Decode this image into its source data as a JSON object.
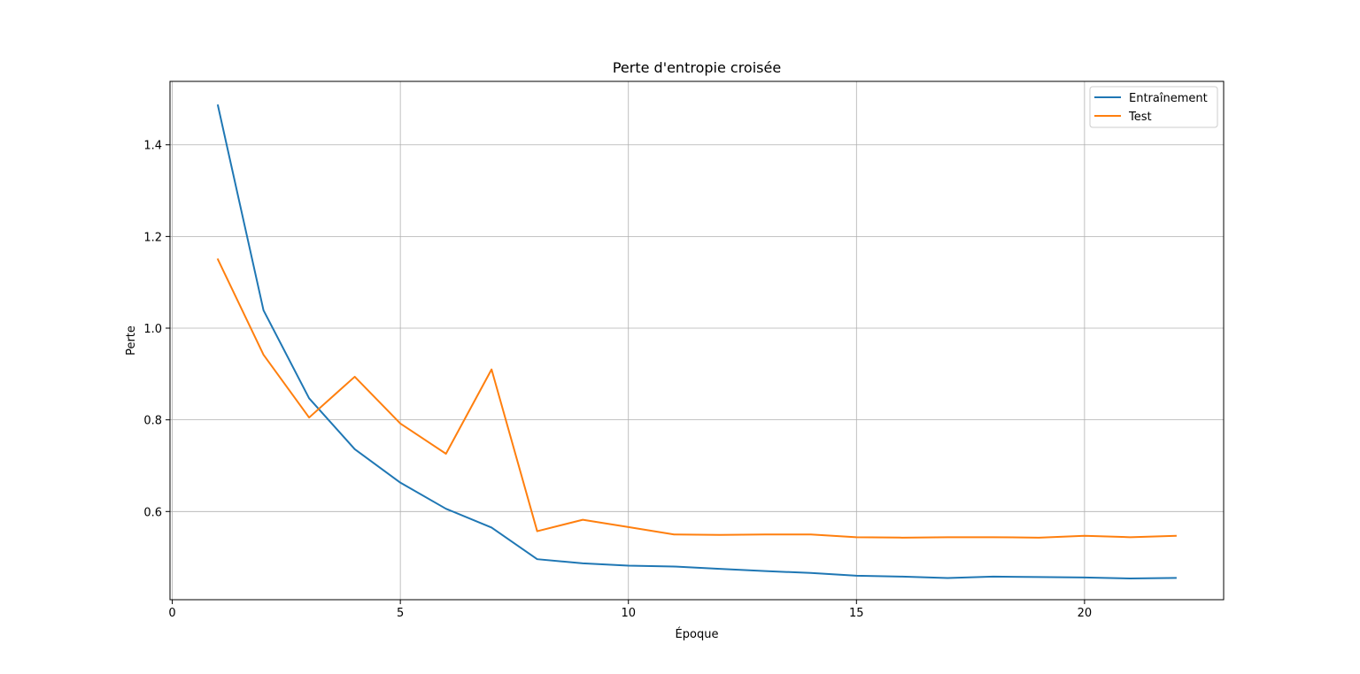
{
  "chart_data": {
    "type": "line",
    "title": "Perte d'entropie croisée",
    "xlabel": "Époque",
    "ylabel": "Perte",
    "xlim": [
      -0.05,
      23.05
    ],
    "ylim": [
      0.4076,
      1.5384
    ],
    "xticks": [
      0,
      5,
      10,
      15,
      20
    ],
    "yticks": [
      0.6,
      0.8,
      1.0,
      1.2,
      1.4
    ],
    "xtick_labels": [
      "0",
      "5",
      "10",
      "15",
      "20"
    ],
    "ytick_labels": [
      "0.6",
      "0.8",
      "1.0",
      "1.2",
      "1.4"
    ],
    "grid": true,
    "legend_position": "top-right",
    "x": [
      1,
      2,
      3,
      4,
      5,
      6,
      7,
      8,
      9,
      10,
      11,
      12,
      13,
      14,
      15,
      16,
      17,
      18,
      19,
      20,
      21,
      22
    ],
    "series": [
      {
        "name": "Entraînement",
        "color": "#1f77b4",
        "values": [
          1.486,
          1.039,
          0.847,
          0.736,
          0.663,
          0.606,
          0.565,
          0.496,
          0.487,
          0.482,
          0.48,
          0.475,
          0.47,
          0.466,
          0.46,
          0.458,
          0.455,
          0.458,
          0.457,
          0.456,
          0.454,
          0.455
        ]
      },
      {
        "name": "Test",
        "color": "#ff7f0e",
        "values": [
          1.15,
          0.942,
          0.805,
          0.894,
          0.792,
          0.726,
          0.91,
          0.557,
          0.582,
          0.566,
          0.55,
          0.549,
          0.55,
          0.55,
          0.544,
          0.543,
          0.544,
          0.544,
          0.543,
          0.547,
          0.544,
          0.547
        ]
      }
    ]
  }
}
